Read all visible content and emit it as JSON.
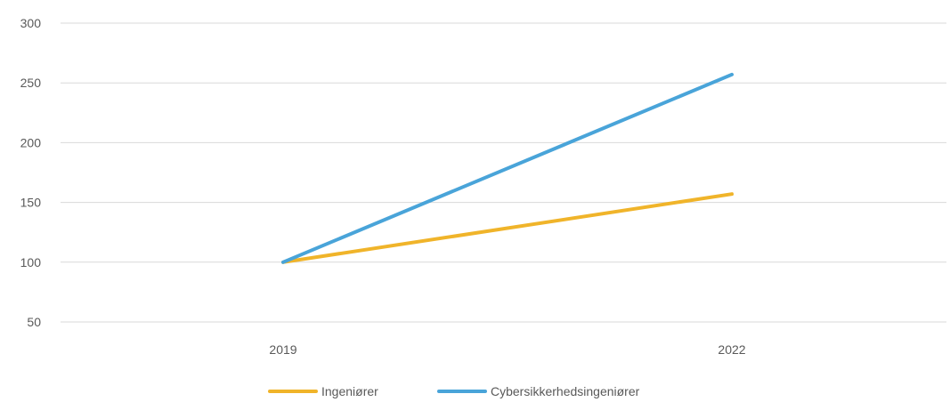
{
  "chart_data": {
    "type": "line",
    "categories": [
      "2019",
      "2022"
    ],
    "series": [
      {
        "name": "Ingeniører",
        "color": "#F0B42A",
        "values": [
          100,
          157
        ]
      },
      {
        "name": "Cybersikkerhedsingeniører",
        "color": "#49A4D9",
        "values": [
          100,
          257
        ]
      }
    ],
    "ylim": [
      50,
      300
    ],
    "yticks": [
      50,
      100,
      150,
      200,
      250,
      300
    ],
    "grid": true,
    "legend_position": "bottom",
    "title": "",
    "xlabel": "",
    "ylabel": ""
  }
}
